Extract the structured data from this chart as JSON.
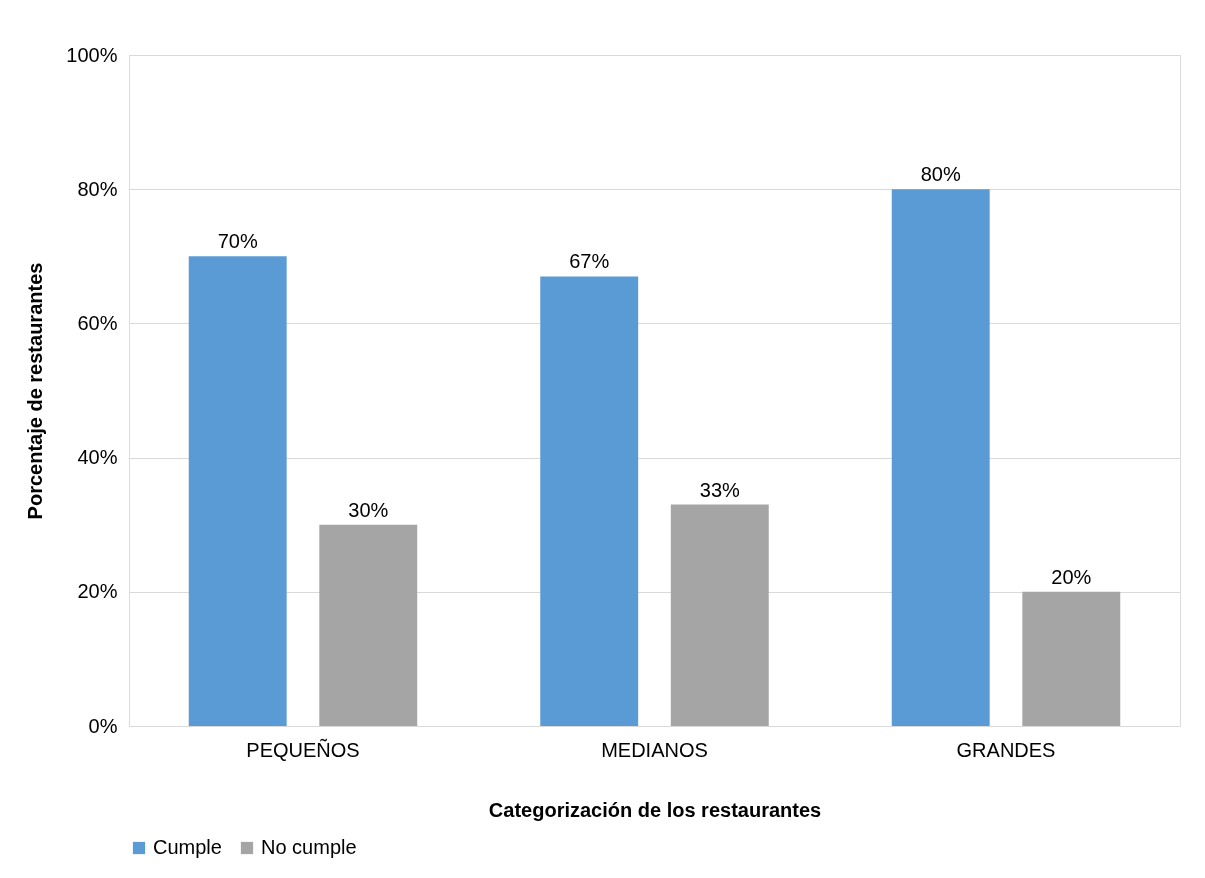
{
  "chart_data": {
    "type": "bar",
    "xlabel": "Categorización de los restaurantes",
    "ylabel": "Porcentaje de restaurantes",
    "categories": [
      "PEQUEÑOS",
      "MEDIANOS",
      "GRANDES"
    ],
    "series": [
      {
        "name": "Cumple",
        "color": "#5b9bd5",
        "values": [
          70,
          67,
          80
        ],
        "value_labels": [
          "70%",
          "67%",
          "80%"
        ]
      },
      {
        "name": "No cumple",
        "color": "#a5a5a5",
        "values": [
          30,
          33,
          20
        ],
        "value_labels": [
          "30%",
          "33%",
          "20%"
        ]
      }
    ],
    "ylim": [
      0,
      100
    ],
    "yticks": [
      {
        "value": 0,
        "label": "0%"
      },
      {
        "value": 20,
        "label": "20%"
      },
      {
        "value": 40,
        "label": "40%"
      },
      {
        "value": 60,
        "label": "60%"
      },
      {
        "value": 80,
        "label": "80%"
      },
      {
        "value": 100,
        "label": "100%"
      }
    ],
    "grid": "y",
    "legend": "bottom"
  }
}
